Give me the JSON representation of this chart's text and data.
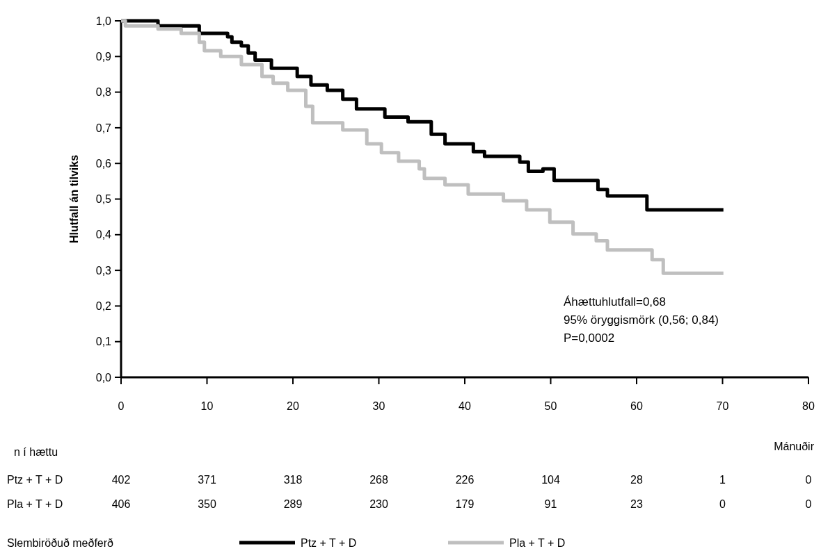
{
  "chart_data": {
    "type": "step",
    "ylabel": "Hlutfall án tilviks",
    "xlabel": "Mánuðir",
    "legend_title": "Slembiröðuð meðferð",
    "legend": "bottom",
    "grid": false,
    "marker": "none",
    "line_style": "solid",
    "xlim": [
      0,
      80
    ],
    "xticks": [
      0,
      10,
      20,
      30,
      40,
      50,
      60,
      70,
      80
    ],
    "ylim": [
      0,
      1
    ],
    "yticks": [
      {
        "value": 0,
        "label": "0,0"
      },
      {
        "value": 0.1,
        "label": "0,1"
      },
      {
        "value": 0.2,
        "label": "0,2"
      },
      {
        "value": 0.3,
        "label": "0,3"
      },
      {
        "value": 0.4,
        "label": "0,4"
      },
      {
        "value": 0.5,
        "label": "0,5"
      },
      {
        "value": 0.6,
        "label": "0,6"
      },
      {
        "value": 0.7,
        "label": "0,7"
      },
      {
        "value": 0.8,
        "label": "0,8"
      },
      {
        "value": 0.9,
        "label": "0,9"
      },
      {
        "value": 1,
        "label": "1,0"
      }
    ],
    "series": [
      {
        "name": "Ptz + T + D",
        "color": "#000000",
        "x": [
          0,
          4.3,
          9.1,
          12.4,
          12.9,
          14,
          14.8,
          15.6,
          17.5,
          20.5,
          22.1,
          24,
          25.8,
          27.4,
          30.7,
          33.4,
          36.1,
          37.7,
          41,
          42.3,
          46.4,
          47.4,
          49.1,
          50.4,
          55.5,
          56.6,
          61.2,
          70.1
        ],
        "values": [
          1,
          0.986,
          0.965,
          0.955,
          0.94,
          0.93,
          0.91,
          0.89,
          0.867,
          0.844,
          0.82,
          0.805,
          0.78,
          0.753,
          0.73,
          0.717,
          0.682,
          0.655,
          0.633,
          0.62,
          0.604,
          0.578,
          0.585,
          0.552,
          0.527,
          0.509,
          0.47,
          0.47
        ]
      },
      {
        "name": "Pla + T + D",
        "color": "#bfbfbf",
        "x": [
          0,
          0.5,
          4.3,
          7,
          9.1,
          9.7,
          11.6,
          14,
          16.4,
          17.7,
          19.4,
          21.5,
          22.3,
          25.8,
          28.6,
          30.3,
          32.3,
          34.7,
          35.3,
          37.7,
          40.4,
          44.5,
          47.2,
          49.9,
          52.6,
          55.3,
          56.6,
          61.8,
          63.1,
          70.1
        ],
        "values": [
          1,
          0.986,
          0.977,
          0.965,
          0.94,
          0.916,
          0.9,
          0.877,
          0.844,
          0.825,
          0.805,
          0.76,
          0.714,
          0.694,
          0.655,
          0.63,
          0.606,
          0.585,
          0.558,
          0.54,
          0.514,
          0.495,
          0.47,
          0.435,
          0.402,
          0.383,
          0.357,
          0.33,
          0.292,
          0.292
        ]
      }
    ],
    "annotations": [
      "Áhættuhlutfall=0,68",
      "95% öryggismörk (0,56; 0,84)",
      "P=0,0002",
      "n í hættu",
      "402",
      "371",
      "318",
      "268",
      "226",
      "104",
      "28",
      "1",
      "0",
      "406",
      "350",
      "289",
      "230",
      "179",
      "91",
      "23",
      "0",
      "0"
    ]
  }
}
